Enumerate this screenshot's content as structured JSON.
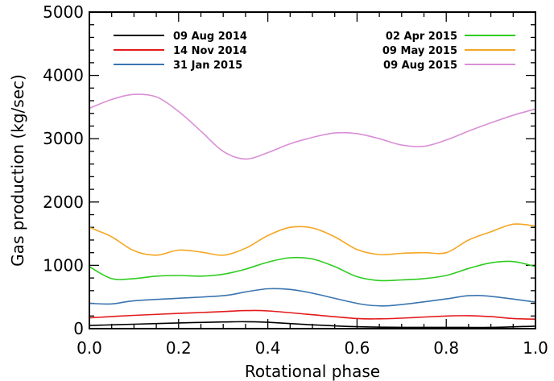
{
  "chart_data": {
    "type": "line",
    "title": "",
    "xlabel": "Rotational phase",
    "ylabel": "Gas production (kg/sec)",
    "xlim": [
      0.0,
      1.0
    ],
    "ylim": [
      0,
      5000
    ],
    "xticks": [
      0.0,
      0.2,
      0.4,
      0.6,
      0.8,
      1.0
    ],
    "xtick_labels": [
      "0.0",
      "0.2",
      "0.4",
      "0.6",
      "0.8",
      "1.0"
    ],
    "yticks": [
      0,
      1000,
      2000,
      3000,
      4000,
      5000
    ],
    "ytick_labels": [
      "0",
      "1000",
      "2000",
      "3000",
      "4000",
      "5000"
    ],
    "grid": false,
    "legend_placement": "top, two columns",
    "series": [
      {
        "name": "09 Aug 2014",
        "color": "#000000",
        "legend_column": "left",
        "x": [
          0.0,
          0.1,
          0.2,
          0.3,
          0.35,
          0.4,
          0.5,
          0.6,
          0.7,
          0.8,
          0.9,
          1.0
        ],
        "y": [
          50,
          70,
          90,
          105,
          110,
          100,
          60,
          30,
          20,
          20,
          20,
          40
        ]
      },
      {
        "name": "14 Nov 2014",
        "color": "#e41a1c",
        "legend_column": "left",
        "x": [
          0.0,
          0.1,
          0.2,
          0.3,
          0.35,
          0.4,
          0.5,
          0.6,
          0.65,
          0.7,
          0.8,
          0.85,
          0.9,
          0.95,
          1.0
        ],
        "y": [
          170,
          210,
          240,
          270,
          285,
          280,
          220,
          160,
          155,
          165,
          200,
          205,
          190,
          160,
          150
        ]
      },
      {
        "name": "31 Jan 2015",
        "color": "#3a75b0",
        "legend_column": "left",
        "x": [
          0.0,
          0.05,
          0.1,
          0.2,
          0.3,
          0.35,
          0.4,
          0.45,
          0.5,
          0.6,
          0.65,
          0.7,
          0.8,
          0.85,
          0.9,
          1.0
        ],
        "y": [
          400,
          390,
          440,
          480,
          520,
          580,
          630,
          620,
          560,
          400,
          360,
          380,
          470,
          520,
          510,
          420
        ]
      },
      {
        "name": "02 Apr 2015",
        "color": "#2ecc1f",
        "legend_column": "right",
        "x": [
          0.0,
          0.05,
          0.1,
          0.15,
          0.2,
          0.25,
          0.3,
          0.35,
          0.4,
          0.45,
          0.5,
          0.55,
          0.6,
          0.65,
          0.7,
          0.75,
          0.8,
          0.85,
          0.9,
          0.95,
          1.0
        ],
        "y": [
          980,
          790,
          790,
          830,
          840,
          830,
          860,
          940,
          1050,
          1120,
          1100,
          980,
          820,
          760,
          770,
          790,
          840,
          950,
          1040,
          1060,
          980
        ]
      },
      {
        "name": "09 May 2015",
        "color": "#f5a623",
        "legend_column": "right",
        "x": [
          0.0,
          0.05,
          0.1,
          0.15,
          0.2,
          0.25,
          0.3,
          0.35,
          0.4,
          0.45,
          0.5,
          0.55,
          0.6,
          0.65,
          0.7,
          0.75,
          0.8,
          0.85,
          0.9,
          0.95,
          1.0
        ],
        "y": [
          1600,
          1450,
          1230,
          1160,
          1240,
          1210,
          1160,
          1270,
          1470,
          1600,
          1590,
          1450,
          1250,
          1170,
          1190,
          1200,
          1200,
          1400,
          1530,
          1650,
          1620
        ]
      },
      {
        "name": "09 Aug 2015",
        "color": "#d98fd6",
        "legend_column": "right",
        "x": [
          0.0,
          0.05,
          0.1,
          0.15,
          0.2,
          0.25,
          0.3,
          0.35,
          0.4,
          0.45,
          0.5,
          0.55,
          0.6,
          0.65,
          0.7,
          0.75,
          0.8,
          0.85,
          0.9,
          0.95,
          1.0
        ],
        "y": [
          3480,
          3620,
          3700,
          3660,
          3430,
          3120,
          2800,
          2680,
          2780,
          2920,
          3020,
          3090,
          3080,
          3000,
          2900,
          2880,
          2980,
          3120,
          3250,
          3370,
          3470
        ]
      }
    ]
  }
}
